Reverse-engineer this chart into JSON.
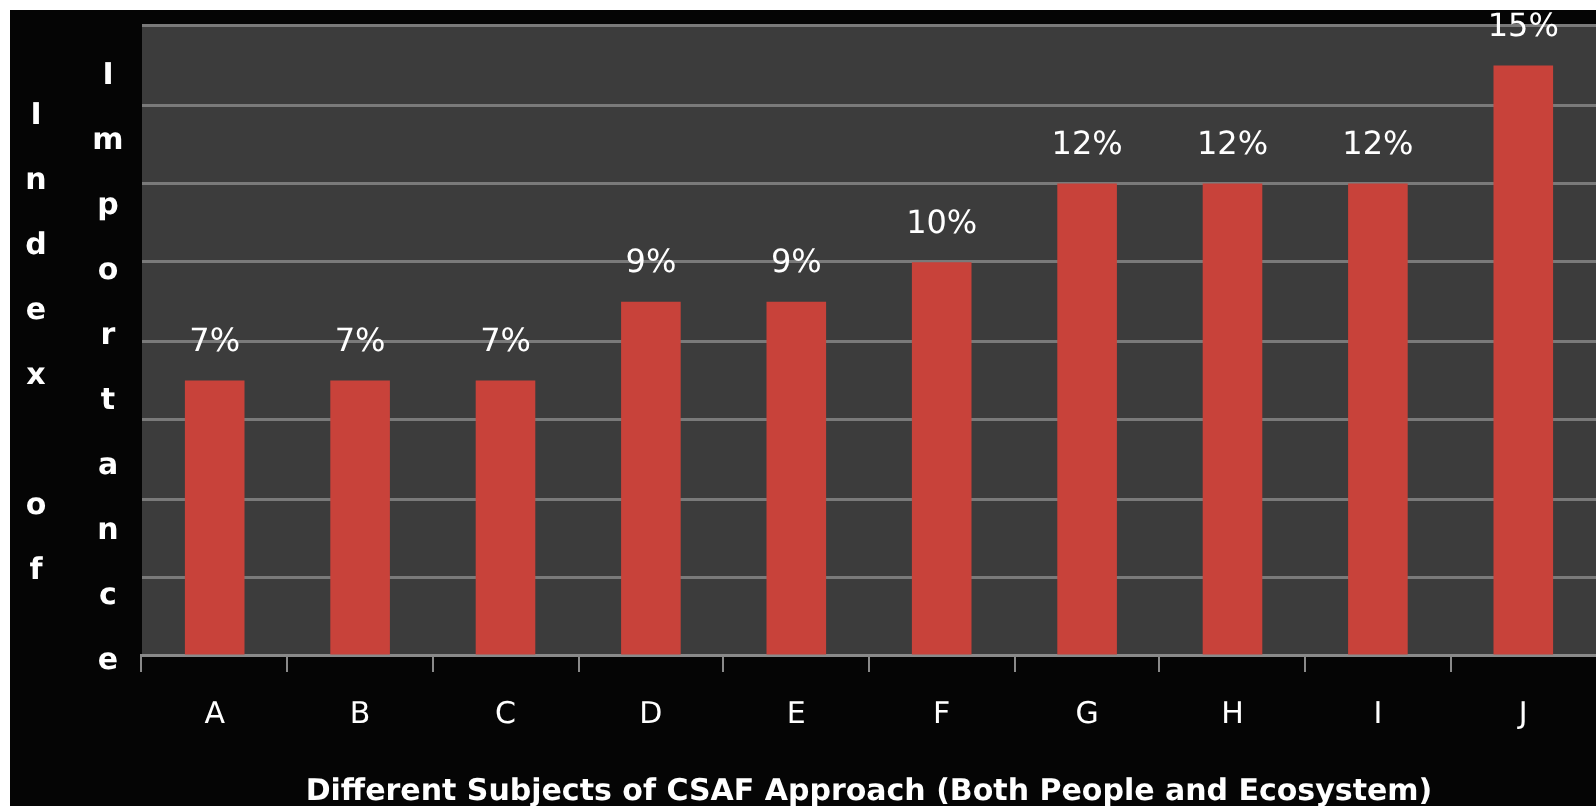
{
  "chart_data": {
    "type": "bar",
    "xlabel": "Different Subjects of CSAF Approach (Both People and Ecosystem)",
    "ylabel": "Index of Importance",
    "categories": [
      "A",
      "B",
      "C",
      "D",
      "E",
      "F",
      "G",
      "H",
      "I",
      "J"
    ],
    "values": [
      7,
      7,
      7,
      9,
      9,
      10,
      12,
      12,
      12,
      15
    ],
    "value_labels": [
      "7%",
      "7%",
      "7%",
      "9%",
      "9%",
      "10%",
      "12%",
      "12%",
      "12%",
      "15%"
    ],
    "color": "#c8423a",
    "ylim": [
      0,
      16
    ],
    "yticks": [
      {
        "value": 0,
        "label": null
      },
      {
        "value": 2,
        "label": null
      },
      {
        "value": 4,
        "label": null
      },
      {
        "value": 6,
        "label": null
      },
      {
        "value": 8,
        "label": null
      },
      {
        "value": 10,
        "label": null
      },
      {
        "value": 12,
        "label": null
      },
      {
        "value": 14,
        "label": null
      },
      {
        "value": 16,
        "label": null
      }
    ],
    "grid": "y",
    "tick_labels": "x"
  }
}
